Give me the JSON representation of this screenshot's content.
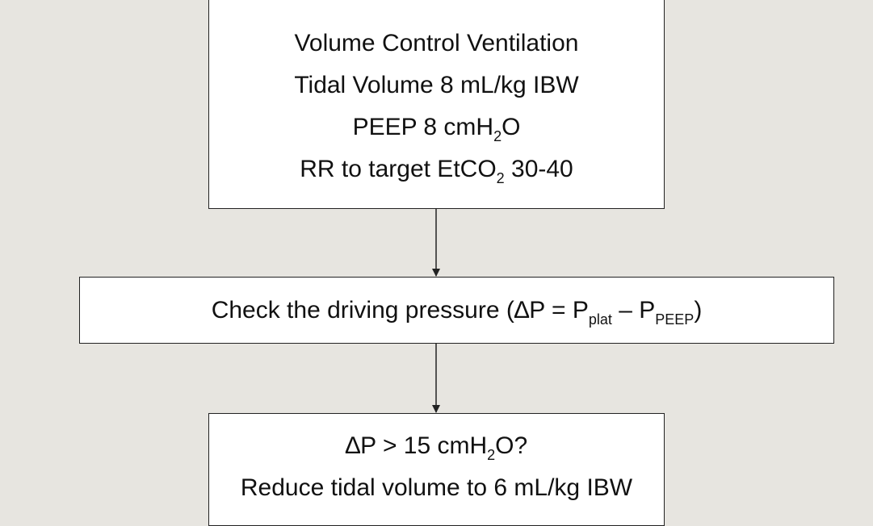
{
  "nodes": [
    {
      "lines": [
        [
          {
            "text": "Volume Control Ventilation"
          }
        ],
        [
          {
            "text": "Tidal Volume 8 mL/kg IBW"
          }
        ],
        [
          {
            "text": "PEEP 8 cmH"
          },
          {
            "sub": "2"
          },
          {
            "text": "O"
          }
        ],
        [
          {
            "text": "RR to target EtCO"
          },
          {
            "sub": "2"
          },
          {
            "text": " 30-40"
          }
        ]
      ]
    },
    {
      "lines": [
        [
          {
            "text": "Check the driving pressure (∆P = P"
          },
          {
            "sub": "plat"
          },
          {
            "text": " – P"
          },
          {
            "sub": "PEEP"
          },
          {
            "text": ")"
          }
        ]
      ]
    },
    {
      "lines": [
        [
          {
            "text": "∆P > 15 cmH"
          },
          {
            "sub": "2"
          },
          {
            "text": "O?"
          }
        ],
        [
          {
            "text": "Reduce tidal volume to 6 mL/kg IBW"
          }
        ]
      ]
    }
  ]
}
